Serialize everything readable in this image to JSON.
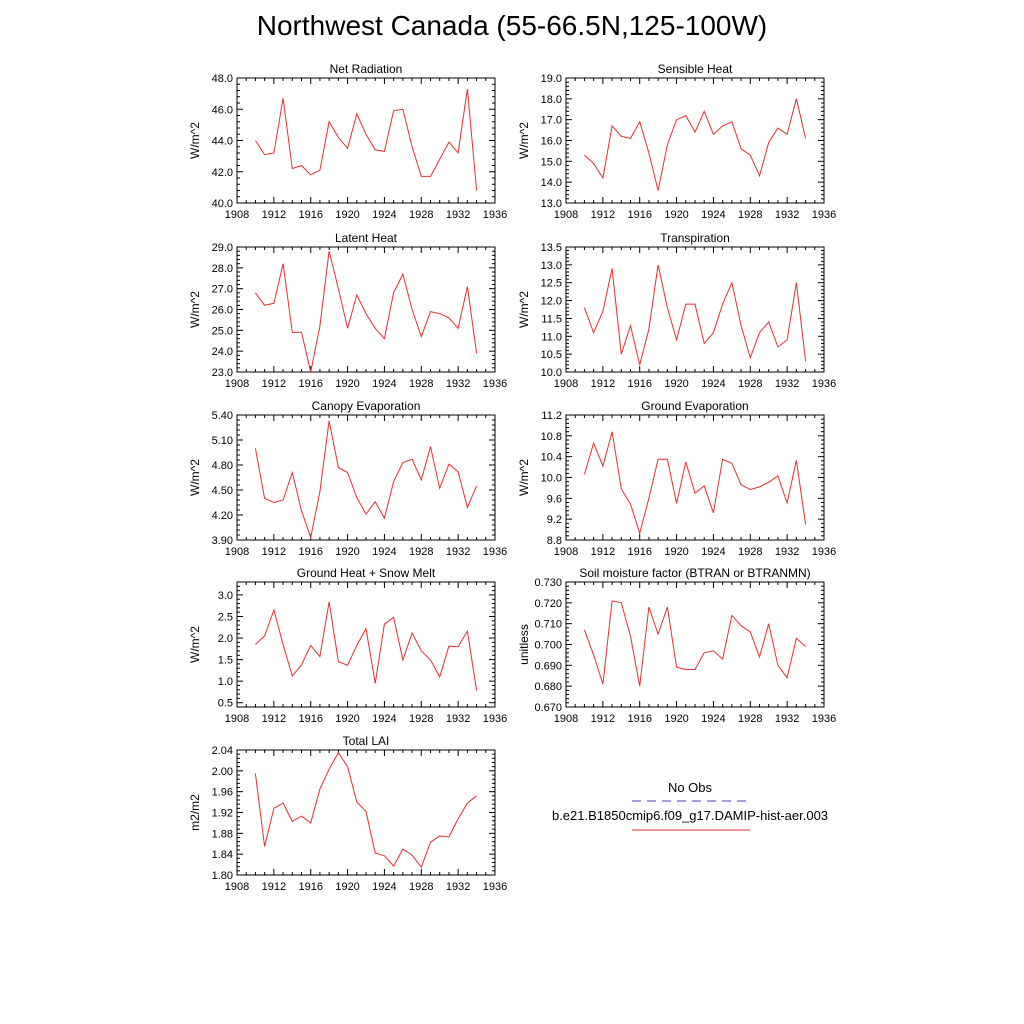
{
  "page_title": "Northwest Canada (55-66.5N,125-100W)",
  "legend": {
    "obs_label": "No Obs",
    "obs_color": "#4040c0",
    "model_label": "b.e21.B1850cmip6.f09_g17.DAMIP-hist-aer.003",
    "model_color": "#e03030"
  },
  "chart_data": [
    {
      "type": "line",
      "title": "Net Radiation",
      "ylabel": "W/m^2",
      "xlim": [
        1908,
        1936
      ],
      "ylim": [
        40.0,
        48.0
      ],
      "xticks": [
        "1908",
        "1912",
        "1916",
        "1920",
        "1924",
        "1928",
        "1932",
        "1936"
      ],
      "yticks": [
        "40.0",
        "42.0",
        "44.0",
        "46.0",
        "48.0"
      ],
      "series": [
        {
          "x": [
            1910,
            1911,
            1912,
            1913,
            1914,
            1915,
            1916,
            1917,
            1918,
            1919,
            1920,
            1921,
            1922,
            1923,
            1924,
            1925,
            1926,
            1927,
            1928,
            1929,
            1930,
            1931,
            1932,
            1933,
            1934
          ],
          "y": [
            44.0,
            43.1,
            43.2,
            46.7,
            42.2,
            42.4,
            41.8,
            42.1,
            45.2,
            44.2,
            43.5,
            45.7,
            44.4,
            43.4,
            43.3,
            45.9,
            46.0,
            43.6,
            41.7,
            41.7,
            42.8,
            43.9,
            43.2,
            47.3,
            40.8
          ]
        }
      ]
    },
    {
      "type": "line",
      "title": "Sensible Heat",
      "ylabel": "W/m^2",
      "xlim": [
        1908,
        1936
      ],
      "ylim": [
        13.0,
        19.0
      ],
      "xticks": [
        "1908",
        "1912",
        "1916",
        "1920",
        "1924",
        "1928",
        "1932",
        "1936"
      ],
      "yticks": [
        "13.0",
        "14.0",
        "15.0",
        "16.0",
        "17.0",
        "18.0",
        "19.0"
      ],
      "series": [
        {
          "x": [
            1910,
            1911,
            1912,
            1913,
            1914,
            1915,
            1916,
            1917,
            1918,
            1919,
            1920,
            1921,
            1922,
            1923,
            1924,
            1925,
            1926,
            1927,
            1928,
            1929,
            1930,
            1931,
            1932,
            1933,
            1934
          ],
          "y": [
            15.3,
            14.9,
            14.2,
            16.7,
            16.2,
            16.1,
            16.9,
            15.4,
            13.6,
            15.8,
            17.0,
            17.2,
            16.4,
            17.4,
            16.3,
            16.7,
            16.9,
            15.6,
            15.3,
            14.3,
            15.9,
            16.6,
            16.3,
            18.0,
            16.1
          ]
        }
      ]
    },
    {
      "type": "line",
      "title": "Latent Heat",
      "ylabel": "W/m^2",
      "xlim": [
        1908,
        1936
      ],
      "ylim": [
        23.0,
        29.0
      ],
      "xticks": [
        "1908",
        "1912",
        "1916",
        "1920",
        "1924",
        "1928",
        "1932",
        "1936"
      ],
      "yticks": [
        "23.0",
        "24.0",
        "25.0",
        "26.0",
        "27.0",
        "28.0",
        "29.0"
      ],
      "series": [
        {
          "x": [
            1910,
            1911,
            1912,
            1913,
            1914,
            1915,
            1916,
            1917,
            1918,
            1919,
            1920,
            1921,
            1922,
            1923,
            1924,
            1925,
            1926,
            1927,
            1928,
            1929,
            1930,
            1931,
            1932,
            1933,
            1934
          ],
          "y": [
            26.8,
            26.2,
            26.3,
            28.2,
            24.9,
            24.9,
            23.0,
            25.2,
            28.8,
            27.0,
            25.1,
            26.7,
            25.8,
            25.1,
            24.6,
            26.8,
            27.7,
            26.0,
            24.7,
            25.9,
            25.8,
            25.6,
            25.1,
            27.1,
            23.9
          ]
        }
      ]
    },
    {
      "type": "line",
      "title": "Transpiration",
      "ylabel": "W/m^2",
      "xlim": [
        1908,
        1936
      ],
      "ylim": [
        10.0,
        13.5
      ],
      "xticks": [
        "1908",
        "1912",
        "1916",
        "1920",
        "1924",
        "1928",
        "1932",
        "1936"
      ],
      "yticks": [
        "10.0",
        "10.5",
        "11.0",
        "11.5",
        "12.0",
        "12.5",
        "13.0",
        "13.5"
      ],
      "series": [
        {
          "x": [
            1910,
            1911,
            1912,
            1913,
            1914,
            1915,
            1916,
            1917,
            1918,
            1919,
            1920,
            1921,
            1922,
            1923,
            1924,
            1925,
            1926,
            1927,
            1928,
            1929,
            1930,
            1931,
            1932,
            1933,
            1934
          ],
          "y": [
            11.8,
            11.1,
            11.7,
            12.9,
            10.5,
            11.3,
            10.2,
            11.2,
            13.0,
            11.8,
            10.9,
            11.9,
            11.9,
            10.8,
            11.1,
            11.9,
            12.5,
            11.3,
            10.4,
            11.1,
            11.4,
            10.7,
            10.9,
            12.5,
            10.3
          ]
        }
      ]
    },
    {
      "type": "line",
      "title": "Canopy Evaporation",
      "ylabel": "W/m^2",
      "xlim": [
        1908,
        1936
      ],
      "ylim": [
        3.9,
        5.4
      ],
      "xticks": [
        "1908",
        "1912",
        "1916",
        "1920",
        "1924",
        "1928",
        "1932",
        "1936"
      ],
      "yticks": [
        "3.90",
        "4.20",
        "4.50",
        "4.80",
        "5.10",
        "5.40"
      ],
      "series": [
        {
          "x": [
            1910,
            1911,
            1912,
            1913,
            1914,
            1915,
            1916,
            1917,
            1918,
            1919,
            1920,
            1921,
            1922,
            1923,
            1924,
            1925,
            1926,
            1927,
            1928,
            1929,
            1930,
            1931,
            1932,
            1933,
            1934
          ],
          "y": [
            5.0,
            4.4,
            4.35,
            4.38,
            4.71,
            4.25,
            3.93,
            4.48,
            5.33,
            4.77,
            4.71,
            4.41,
            4.21,
            4.36,
            4.16,
            4.6,
            4.83,
            4.87,
            4.62,
            5.02,
            4.52,
            4.81,
            4.72,
            4.29,
            4.55
          ]
        }
      ]
    },
    {
      "type": "line",
      "title": "Ground Evaporation",
      "ylabel": "W/m^2",
      "xlim": [
        1908,
        1936
      ],
      "ylim": [
        8.8,
        11.2
      ],
      "xticks": [
        "1908",
        "1912",
        "1916",
        "1920",
        "1924",
        "1928",
        "1932",
        "1936"
      ],
      "yticks": [
        "8.8",
        "9.2",
        "9.6",
        "10.0",
        "10.4",
        "10.8",
        "11.2"
      ],
      "series": [
        {
          "x": [
            1910,
            1911,
            1912,
            1913,
            1914,
            1915,
            1916,
            1917,
            1918,
            1919,
            1920,
            1921,
            1922,
            1923,
            1924,
            1925,
            1926,
            1927,
            1928,
            1929,
            1930,
            1931,
            1932,
            1933,
            1934
          ],
          "y": [
            10.06,
            10.66,
            10.22,
            10.88,
            9.78,
            9.49,
            8.93,
            9.6,
            10.35,
            10.35,
            9.5,
            10.3,
            9.7,
            9.84,
            9.32,
            10.35,
            10.27,
            9.86,
            9.77,
            9.82,
            9.91,
            10.03,
            9.51,
            10.33,
            9.1
          ]
        }
      ]
    },
    {
      "type": "line",
      "title": "Ground Heat + Snow Melt",
      "ylabel": "W/m^2",
      "xlim": [
        1908,
        1936
      ],
      "ylim": [
        0.4,
        3.3
      ],
      "xticks": [
        "1908",
        "1912",
        "1916",
        "1920",
        "1924",
        "1928",
        "1932",
        "1936"
      ],
      "yticks": [
        "0.5",
        "1.0",
        "1.5",
        "2.0",
        "2.5",
        "3.0"
      ],
      "series": [
        {
          "x": [
            1910,
            1911,
            1912,
            1913,
            1914,
            1915,
            1916,
            1917,
            1918,
            1919,
            1920,
            1921,
            1922,
            1923,
            1924,
            1925,
            1926,
            1927,
            1928,
            1929,
            1930,
            1931,
            1932,
            1933,
            1934
          ],
          "y": [
            1.85,
            2.05,
            2.65,
            1.85,
            1.12,
            1.38,
            1.83,
            1.57,
            2.84,
            1.45,
            1.37,
            1.83,
            2.22,
            0.95,
            2.32,
            2.48,
            1.49,
            2.12,
            1.7,
            1.49,
            1.1,
            1.81,
            1.8,
            2.16,
            0.78
          ]
        }
      ]
    },
    {
      "type": "line",
      "title": "Soil moisture factor (BTRAN or BTRANMN)",
      "ylabel": "unitless",
      "xlim": [
        1908,
        1936
      ],
      "ylim": [
        0.67,
        0.73
      ],
      "xticks": [
        "1908",
        "1912",
        "1916",
        "1920",
        "1924",
        "1928",
        "1932",
        "1936"
      ],
      "yticks": [
        "0.670",
        "0.680",
        "0.690",
        "0.700",
        "0.710",
        "0.720",
        "0.730"
      ],
      "series": [
        {
          "x": [
            1910,
            1911,
            1912,
            1913,
            1914,
            1915,
            1916,
            1917,
            1918,
            1919,
            1920,
            1921,
            1922,
            1923,
            1924,
            1925,
            1926,
            1927,
            1928,
            1929,
            1930,
            1931,
            1932,
            1933,
            1934
          ],
          "y": [
            0.707,
            0.695,
            0.681,
            0.721,
            0.72,
            0.704,
            0.68,
            0.718,
            0.705,
            0.718,
            0.689,
            0.688,
            0.688,
            0.696,
            0.697,
            0.693,
            0.714,
            0.709,
            0.706,
            0.694,
            0.71,
            0.69,
            0.684,
            0.703,
            0.699
          ]
        }
      ]
    },
    {
      "type": "line",
      "title": "Total LAI",
      "ylabel": "m2/m2",
      "xlim": [
        1908,
        1936
      ],
      "ylim": [
        1.8,
        2.04
      ],
      "xticks": [
        "1908",
        "1912",
        "1916",
        "1920",
        "1924",
        "1928",
        "1932",
        "1936"
      ],
      "yticks": [
        "1.80",
        "1.84",
        "1.88",
        "1.92",
        "1.96",
        "2.00",
        "2.04"
      ],
      "series": [
        {
          "x": [
            1910,
            1911,
            1912,
            1913,
            1914,
            1915,
            1916,
            1917,
            1918,
            1919,
            1920,
            1921,
            1922,
            1923,
            1924,
            1925,
            1926,
            1927,
            1928,
            1929,
            1930,
            1931,
            1932,
            1933,
            1934
          ],
          "y": [
            1.995,
            1.855,
            1.928,
            1.938,
            1.903,
            1.913,
            1.9,
            1.965,
            2.003,
            2.035,
            2.008,
            1.94,
            1.922,
            1.842,
            1.837,
            1.817,
            1.85,
            1.838,
            1.815,
            1.863,
            1.875,
            1.873,
            1.908,
            1.938,
            1.952
          ]
        }
      ]
    }
  ]
}
